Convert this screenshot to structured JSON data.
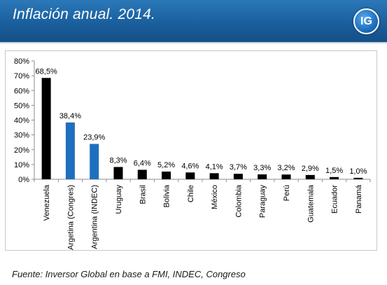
{
  "header": {
    "title": "Inflación anual. 2014.",
    "logo_text": "IG"
  },
  "colors": {
    "header_bg": "#1a5f9e",
    "bar_default": "#000000",
    "bar_highlight": "#1f6fbf"
  },
  "chart_data": {
    "type": "bar",
    "title": "",
    "xlabel": "",
    "ylabel": "",
    "ylim": [
      0,
      80
    ],
    "yticks": [
      "0%",
      "10%",
      "20%",
      "30%",
      "40%",
      "50%",
      "60%",
      "70%",
      "80%"
    ],
    "grid": false,
    "categories": [
      "Venezuela",
      "Argetina (Congres)",
      "Argentina (INDEC)",
      "Uruguay",
      "Brasil",
      "Bolivia",
      "Chile",
      "México",
      "Colombia",
      "Paraguay",
      "Perú",
      "Guatemala",
      "Ecuador",
      "Panamá"
    ],
    "values": [
      68.5,
      38.4,
      23.9,
      8.3,
      6.4,
      5.2,
      4.6,
      4.1,
      3.7,
      3.3,
      3.2,
      2.9,
      1.5,
      1.0
    ],
    "data_labels": [
      "68,5%",
      "38,4%",
      "23,9%",
      "8,3%",
      "6,4%",
      "5,2%",
      "4,6%",
      "4,1%",
      "3,7%",
      "3,3%",
      "3,2%",
      "2,9%",
      "1,5%",
      "1,0%"
    ],
    "bar_colors": [
      "#000000",
      "#1f6fbf",
      "#1f6fbf",
      "#000000",
      "#000000",
      "#000000",
      "#000000",
      "#000000",
      "#000000",
      "#000000",
      "#000000",
      "#000000",
      "#000000",
      "#000000"
    ]
  },
  "source": "Fuente: Inversor Global en base a FMI, INDEC, Congreso"
}
